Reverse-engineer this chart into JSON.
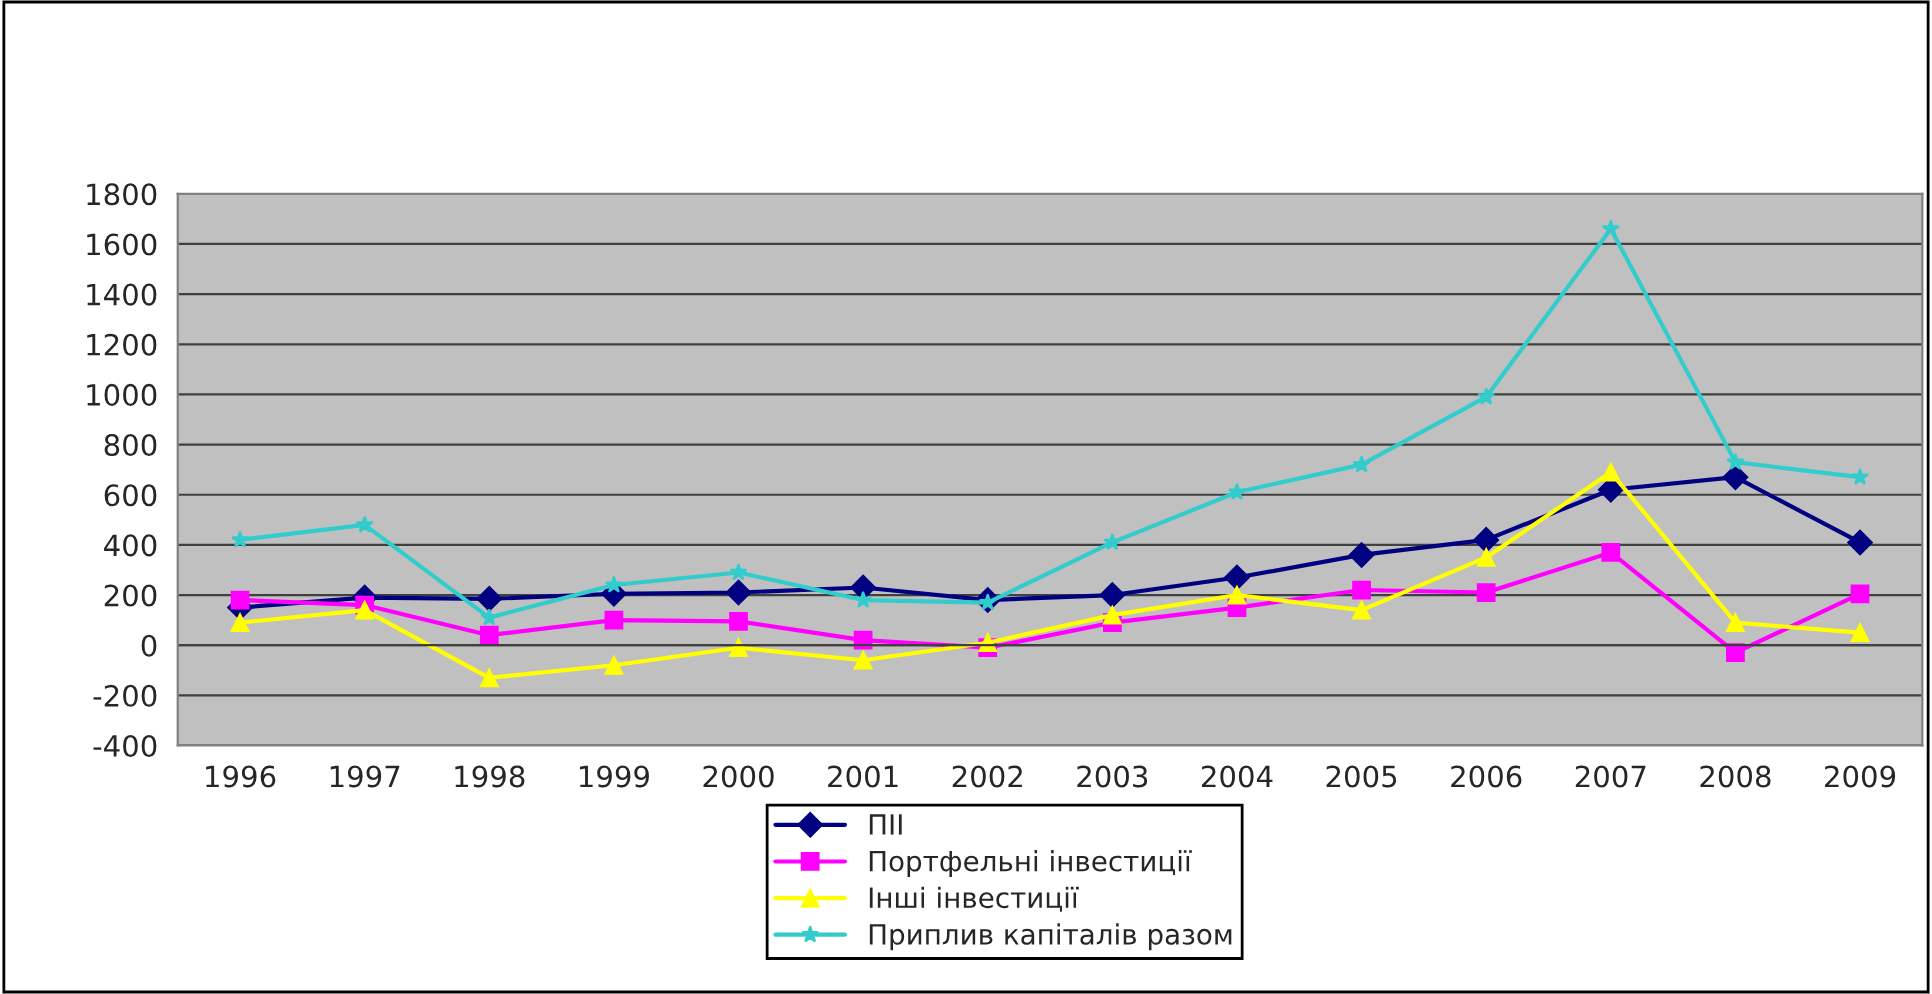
{
  "chart_data": {
    "type": "line",
    "categories": [
      "1996",
      "1997",
      "1998",
      "1999",
      "2000",
      "2001",
      "2002",
      "2003",
      "2004",
      "2005",
      "2006",
      "2007",
      "2008",
      "2009"
    ],
    "series": [
      {
        "name": "ПІІ",
        "color": "#000080",
        "marker": "diamond",
        "values": [
          150,
          190,
          185,
          205,
          210,
          230,
          180,
          200,
          270,
          360,
          420,
          620,
          670,
          410
        ]
      },
      {
        "name": "Портфельні інвестиції",
        "color": "#ff00ff",
        "marker": "square",
        "values": [
          180,
          160,
          40,
          100,
          95,
          20,
          -10,
          90,
          150,
          220,
          210,
          370,
          -30,
          205
        ]
      },
      {
        "name": "Інші інвестиції",
        "color": "#ffff00",
        "marker": "triangle",
        "values": [
          90,
          140,
          -130,
          -80,
          -10,
          -60,
          10,
          120,
          200,
          140,
          350,
          690,
          90,
          50
        ]
      },
      {
        "name": "Приплив капіталів разом",
        "color": "#33cccc",
        "marker": "star",
        "values": [
          420,
          480,
          110,
          240,
          290,
          180,
          170,
          410,
          610,
          720,
          990,
          1660,
          730,
          670
        ]
      }
    ],
    "ylim": [
      -400,
      1800
    ],
    "yticks": [
      -400,
      -200,
      0,
      200,
      400,
      600,
      800,
      1000,
      1200,
      1400,
      1600,
      1800
    ],
    "grid": "y",
    "legend": "bottom"
  }
}
